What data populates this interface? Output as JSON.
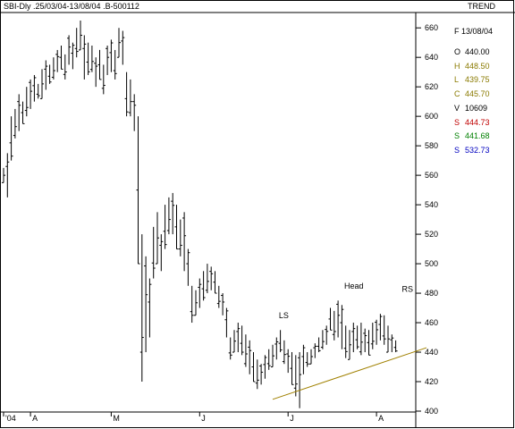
{
  "header": {
    "left": "SBI-Dly .25/03/04-13/08/04 .B-500112",
    "right": "TREND"
  },
  "info_panel": {
    "date": "F 13/08/04",
    "rows": [
      {
        "key": "O",
        "value": "440.00",
        "color": "#000000"
      },
      {
        "key": "H",
        "value": "448.50",
        "color": "#8a7a00"
      },
      {
        "key": "L",
        "value": "439.75",
        "color": "#8a7a00"
      },
      {
        "key": "C",
        "value": "445.70",
        "color": "#8a7a00"
      },
      {
        "key": "V",
        "value": "10609",
        "color": "#000000"
      },
      {
        "key": "S",
        "value": "444.73",
        "color": "#c00000"
      },
      {
        "key": "S",
        "value": "441.68",
        "color": "#008000"
      },
      {
        "key": "S",
        "value": "532.73",
        "color": "#0000c0"
      }
    ]
  },
  "chart_data": {
    "type": "ohlc",
    "ylim": [
      400,
      668
    ],
    "yticks": [
      400,
      420,
      440,
      460,
      480,
      500,
      520,
      540,
      560,
      580,
      600,
      620,
      640,
      660
    ],
    "x_tick_labels": [
      {
        "label": "'04",
        "bar": 0
      },
      {
        "label": "A",
        "bar": 7
      },
      {
        "label": "M",
        "bar": 28
      },
      {
        "label": "J",
        "bar": 51
      },
      {
        "label": "J",
        "bar": 74
      },
      {
        "label": "A",
        "bar": 97
      }
    ],
    "bars": [
      [
        565,
        555
      ],
      [
        575,
        545
      ],
      [
        600,
        570
      ],
      [
        605,
        585
      ],
      [
        615,
        590
      ],
      [
        610,
        595
      ],
      [
        620,
        600
      ],
      [
        625,
        605
      ],
      [
        628,
        610
      ],
      [
        622,
        612
      ],
      [
        632,
        612
      ],
      [
        638,
        618
      ],
      [
        635,
        622
      ],
      [
        640,
        625
      ],
      [
        645,
        630
      ],
      [
        648,
        632
      ],
      [
        642,
        625
      ],
      [
        655,
        635
      ],
      [
        650,
        632
      ],
      [
        660,
        640
      ],
      [
        665,
        645
      ],
      [
        655,
        625
      ],
      [
        650,
        628
      ],
      [
        648,
        630
      ],
      [
        640,
        620
      ],
      [
        645,
        625
      ],
      [
        635,
        615
      ],
      [
        648,
        628
      ],
      [
        652,
        630
      ],
      [
        645,
        625
      ],
      [
        660,
        640
      ],
      [
        658,
        635
      ],
      [
        630,
        600
      ],
      [
        625,
        600
      ],
      [
        615,
        590
      ],
      [
        600,
        500
      ],
      [
        520,
        420
      ],
      [
        505,
        440
      ],
      [
        490,
        450
      ],
      [
        525,
        490
      ],
      [
        535,
        500
      ],
      [
        520,
        495
      ],
      [
        540,
        510
      ],
      [
        545,
        520
      ],
      [
        548,
        520
      ],
      [
        540,
        510
      ],
      [
        530,
        505
      ],
      [
        535,
        495
      ],
      [
        510,
        485
      ],
      [
        485,
        460
      ],
      [
        482,
        465
      ],
      [
        490,
        470
      ],
      [
        495,
        475
      ],
      [
        500,
        480
      ],
      [
        498,
        482
      ],
      [
        495,
        480
      ],
      [
        485,
        470
      ],
      [
        480,
        465
      ],
      [
        470,
        450
      ],
      [
        450,
        435
      ],
      [
        455,
        440
      ],
      [
        460,
        440
      ],
      [
        458,
        438
      ],
      [
        452,
        430
      ],
      [
        448,
        425
      ],
      [
        440,
        420
      ],
      [
        435,
        415
      ],
      [
        432,
        418
      ],
      [
        438,
        422
      ],
      [
        442,
        428
      ],
      [
        445,
        430
      ],
      [
        450,
        435
      ],
      [
        455,
        440
      ],
      [
        448,
        432
      ],
      [
        442,
        426
      ],
      [
        440,
        418
      ],
      [
        438,
        410
      ],
      [
        440,
        402
      ],
      [
        445,
        425
      ],
      [
        440,
        430
      ],
      [
        442,
        432
      ],
      [
        446,
        436
      ],
      [
        450,
        440
      ],
      [
        455,
        442
      ],
      [
        458,
        445
      ],
      [
        470,
        455
      ],
      [
        468,
        448
      ],
      [
        475,
        450
      ],
      [
        472,
        442
      ],
      [
        458,
        436
      ],
      [
        455,
        435
      ],
      [
        460,
        440
      ],
      [
        458,
        442
      ],
      [
        460,
        438
      ],
      [
        456,
        440
      ],
      [
        455,
        438
      ],
      [
        460,
        442
      ],
      [
        462,
        445
      ],
      [
        466,
        448
      ],
      [
        465,
        445
      ],
      [
        458,
        440
      ],
      [
        452,
        440
      ],
      [
        448,
        440
      ]
    ],
    "annotations": [
      {
        "text": "LS",
        "bar": 73,
        "y": 463
      },
      {
        "text": "Head",
        "bar": 90,
        "y": 483
      },
      {
        "text": "RS",
        "bar": 105,
        "y": 481
      }
    ],
    "trendline": {
      "start": {
        "bar": 70,
        "value": 408
      },
      "end": {
        "bar": 110,
        "value": 443
      },
      "color": "#a08000"
    }
  }
}
